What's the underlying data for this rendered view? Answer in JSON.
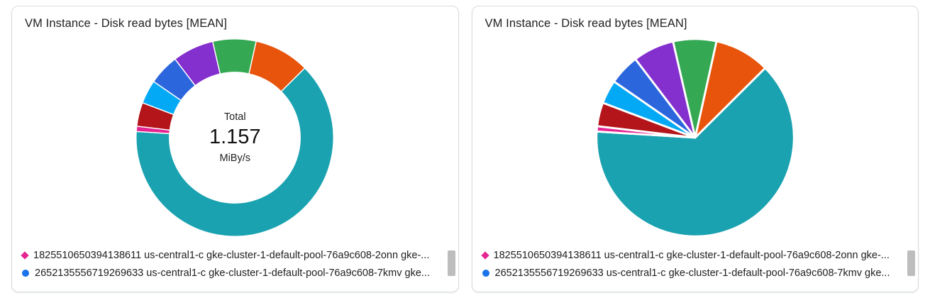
{
  "cards": [
    {
      "title": "VM Instance - Disk read bytes [MEAN]"
    },
    {
      "title": "VM Instance - Disk read bytes [MEAN]"
    }
  ],
  "chart_data": [
    {
      "type": "pie",
      "variant": "donut",
      "title": "VM Instance - Disk read bytes [MEAN]",
      "center_label": "Total",
      "center_value": "1.157",
      "center_unit": "MiBy/s",
      "total": 1.157,
      "unit": "MiBy/s",
      "rotation": -13,
      "legend_position": "bottom",
      "slices": [
        {
          "color": "#34a853",
          "value": 0.082
        },
        {
          "color": "#e8540b",
          "value": 0.105
        },
        {
          "color": "#1aa2b0",
          "value": 0.734
        },
        {
          "color": "#e52592",
          "value": 0.01,
          "series": "1825510650394138611 us-central1-c gke-cluster-1-default-pool-76a9c608-2onn"
        },
        {
          "color": "#b3151a",
          "value": 0.045
        },
        {
          "color": "#03a9f4",
          "value": 0.045
        },
        {
          "color": "#2b66dd",
          "value": 0.058,
          "series": "2652135556719269633 us-central1-c gke-cluster-1-default-pool-76a9c608-7kmv"
        },
        {
          "color": "#8430ce",
          "value": 0.078
        }
      ],
      "legend": [
        {
          "marker": "diamond",
          "color": "#e52592",
          "label": "1825510650394138611 us-central1-c gke-cluster-1-default-pool-76a9c608-2onn gke-..."
        },
        {
          "marker": "circle",
          "color": "#1a73e8",
          "label": "2652135556719269633 us-central1-c gke-cluster-1-default-pool-76a9c608-7kmv gke..."
        }
      ]
    },
    {
      "type": "pie",
      "variant": "pie",
      "title": "VM Instance - Disk read bytes [MEAN]",
      "total": 1.157,
      "unit": "MiBy/s",
      "rotation": -13,
      "legend_position": "bottom",
      "slices": [
        {
          "color": "#34a853",
          "value": 0.082
        },
        {
          "color": "#e8540b",
          "value": 0.105
        },
        {
          "color": "#1aa2b0",
          "value": 0.734
        },
        {
          "color": "#e52592",
          "value": 0.01,
          "series": "1825510650394138611 us-central1-c gke-cluster-1-default-pool-76a9c608-2onn"
        },
        {
          "color": "#b3151a",
          "value": 0.045
        },
        {
          "color": "#03a9f4",
          "value": 0.045
        },
        {
          "color": "#2b66dd",
          "value": 0.058,
          "series": "2652135556719269633 us-central1-c gke-cluster-1-default-pool-76a9c608-7kmv"
        },
        {
          "color": "#8430ce",
          "value": 0.078
        }
      ],
      "legend": [
        {
          "marker": "diamond",
          "color": "#e52592",
          "label": "1825510650394138611 us-central1-c gke-cluster-1-default-pool-76a9c608-2onn gke-..."
        },
        {
          "marker": "circle",
          "color": "#1a73e8",
          "label": "2652135556719269633 us-central1-c gke-cluster-1-default-pool-76a9c608-7kmv gke..."
        }
      ]
    }
  ]
}
